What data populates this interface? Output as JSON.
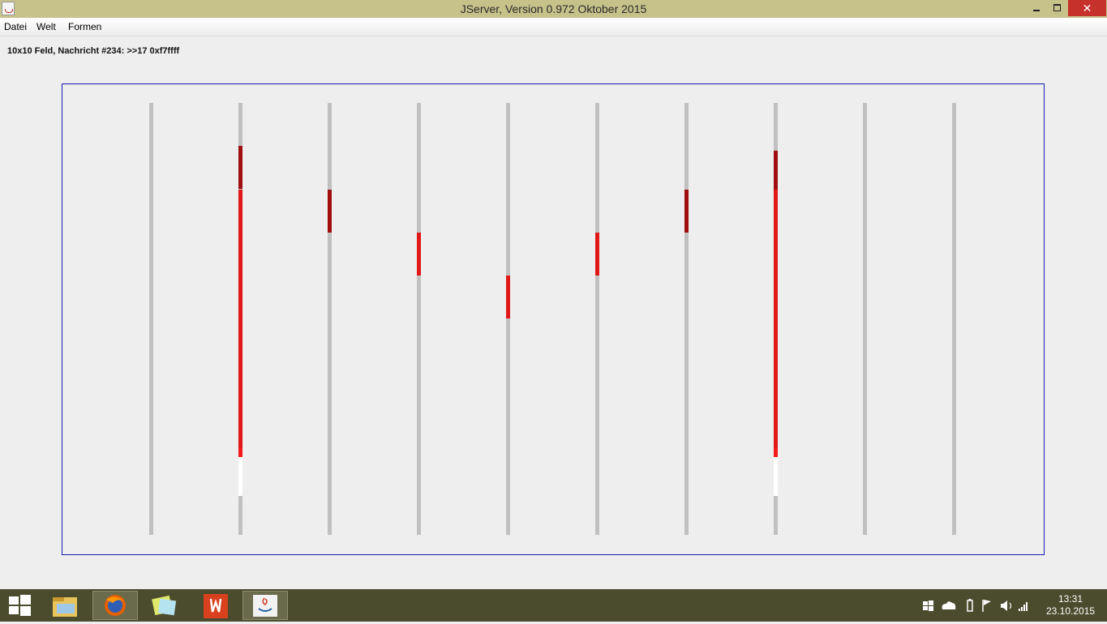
{
  "window": {
    "title": "JServer, Version 0.972 Oktober 2015",
    "close_glyph": "✕"
  },
  "menu": {
    "items": [
      "Datei",
      "Welt",
      "Formen"
    ]
  },
  "status": {
    "text": "10x10 Feld, Nachricht #234: >>17 0xf7ffff"
  },
  "colors": {
    "bar_gray": "#c0c0c0",
    "dark_red": "#a00f0f",
    "red": "#e11818",
    "bright_red": "#f41a1a",
    "white": "#ffffff",
    "frame_blue": "#1a1ab4"
  },
  "columns": [
    {
      "segments": []
    },
    {
      "segments": [
        {
          "from_row": 1,
          "to_row": 2,
          "color": "dark_red"
        },
        {
          "from_row": 2,
          "to_row": 8,
          "color": "red"
        },
        {
          "from_row": 8,
          "to_row": 8.2,
          "color": "bright_red"
        },
        {
          "from_row": 8.2,
          "to_row": 9.1,
          "color": "white"
        }
      ]
    },
    {
      "segments": [
        {
          "from_row": 2,
          "to_row": 3,
          "color": "dark_red"
        }
      ]
    },
    {
      "segments": [
        {
          "from_row": 3,
          "to_row": 4,
          "color": "red"
        }
      ]
    },
    {
      "segments": [
        {
          "from_row": 4,
          "to_row": 5,
          "color": "red"
        }
      ]
    },
    {
      "segments": [
        {
          "from_row": 3,
          "to_row": 4,
          "color": "red"
        }
      ]
    },
    {
      "segments": [
        {
          "from_row": 2,
          "to_row": 3,
          "color": "dark_red"
        }
      ]
    },
    {
      "segments": [
        {
          "from_row": 1.1,
          "to_row": 2,
          "color": "dark_red"
        },
        {
          "from_row": 2,
          "to_row": 8,
          "color": "red"
        },
        {
          "from_row": 8,
          "to_row": 8.2,
          "color": "bright_red"
        },
        {
          "from_row": 8.2,
          "to_row": 9.1,
          "color": "white"
        }
      ]
    },
    {
      "segments": []
    },
    {
      "segments": []
    }
  ],
  "taskbar": {
    "apps": [
      {
        "name": "windows-start-icon",
        "active": false
      },
      {
        "name": "file-explorer-icon",
        "active": false
      },
      {
        "name": "firefox-icon",
        "active": true
      },
      {
        "name": "sticky-notes-icon",
        "active": false
      },
      {
        "name": "acrobat-icon",
        "active": false
      },
      {
        "name": "java-icon",
        "active": true
      }
    ],
    "tray_icons": [
      "windows-flag-icon",
      "onedrive-icon",
      "battery-icon",
      "action-center-flag-icon",
      "volume-icon",
      "signal-icon"
    ],
    "time": "13:31",
    "date": "23.10.2015"
  }
}
